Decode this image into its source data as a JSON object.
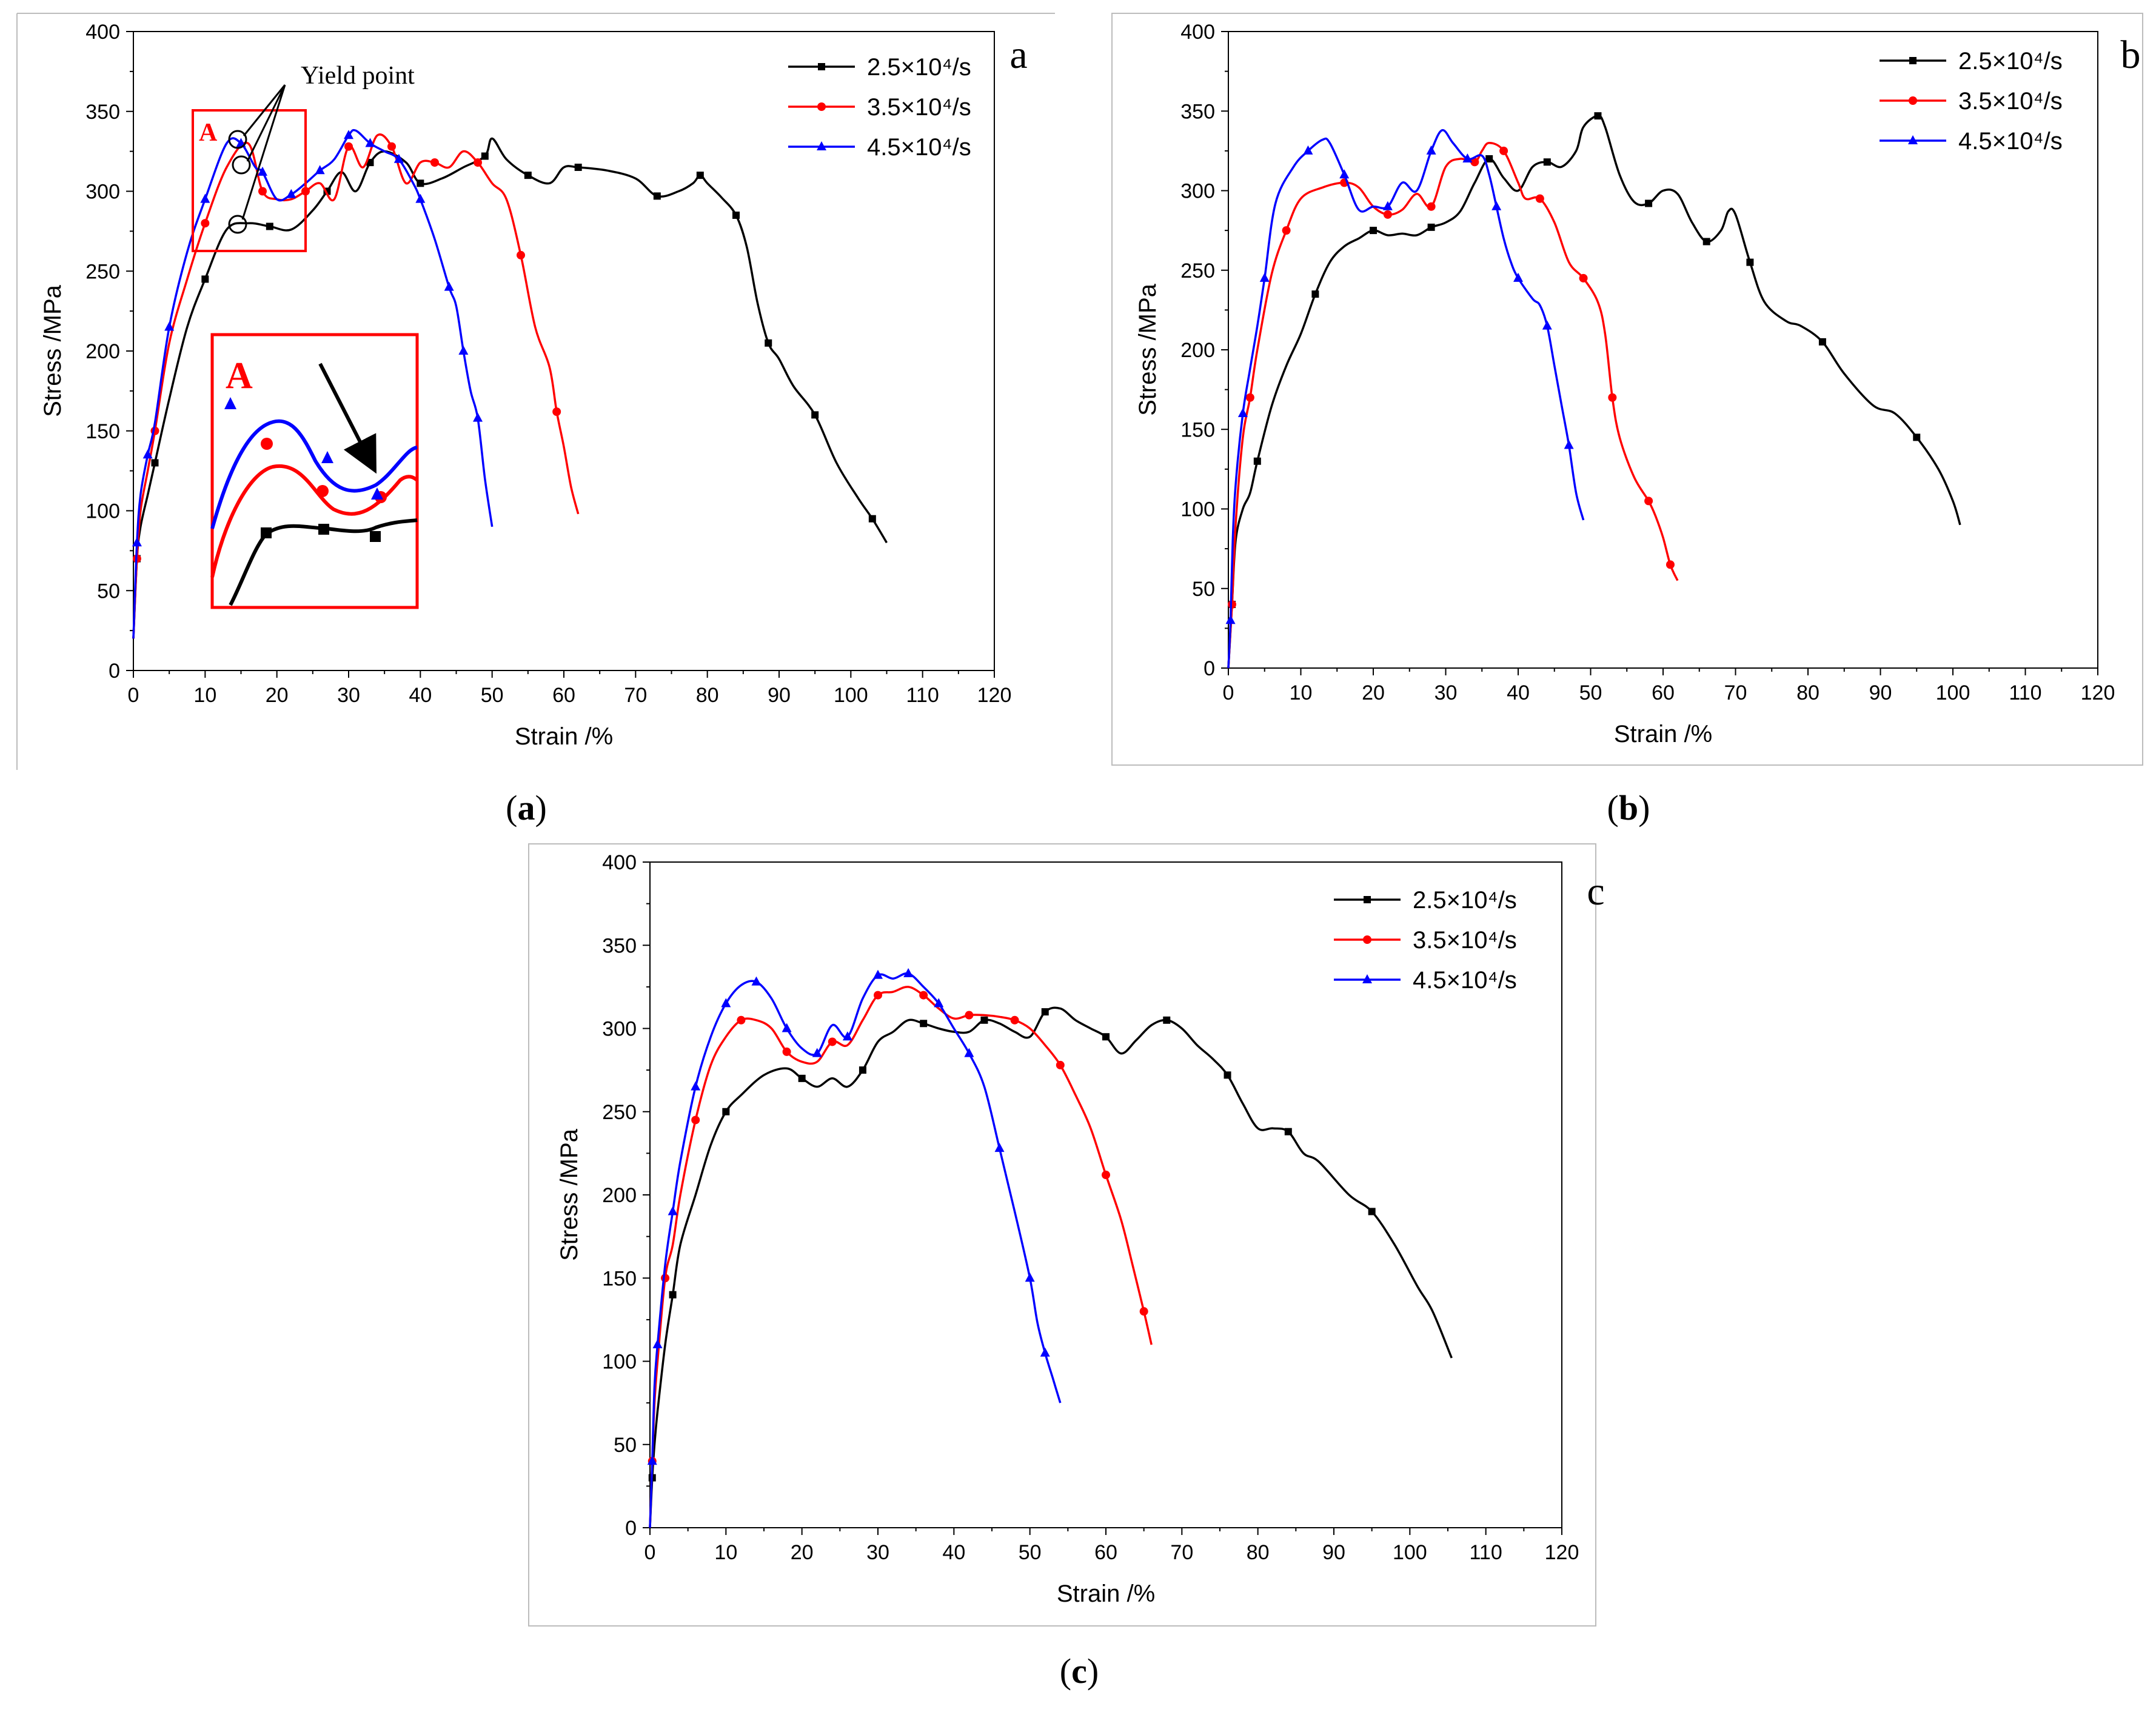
{
  "figure": {
    "captions": [
      "(a)",
      "(b)",
      "(c)"
    ]
  },
  "chart_data": [
    {
      "type": "line",
      "panel_letter": "a",
      "caption": "(a)",
      "xlabel": "Strain /%",
      "ylabel": "Stress /MPa",
      "xlim": [
        0,
        120
      ],
      "ylim": [
        0,
        400
      ],
      "xticks": [
        "0",
        "10",
        "20",
        "30",
        "40",
        "50",
        "60",
        "70",
        "80",
        "90",
        "100",
        "110",
        "120"
      ],
      "yticks": [
        "0",
        "50",
        "100",
        "150",
        "200",
        "250",
        "300",
        "350",
        "400"
      ],
      "legend_position": "top-right",
      "annotation": "Yield point",
      "inset_label": "A",
      "series": [
        {
          "name": "2.5×10⁴/s",
          "color": "#000000",
          "marker": "square",
          "x": [
            0,
            0.5,
            1,
            2,
            3,
            5,
            7.5,
            10,
            13,
            16,
            19,
            22,
            25,
            27,
            29,
            31,
            33,
            35,
            38,
            40,
            43,
            46,
            49,
            50,
            52,
            55,
            58,
            60,
            62,
            66,
            70,
            73,
            76,
            78,
            79,
            80,
            82,
            84,
            85.5,
            87,
            88.5,
            90,
            92,
            95,
            98,
            101,
            103,
            105
          ],
          "y": [
            20,
            70,
            90,
            110,
            130,
            170,
            215,
            245,
            276,
            280,
            278,
            276,
            288,
            300,
            312,
            300,
            318,
            325,
            318,
            305,
            308,
            315,
            322,
            333,
            320,
            310,
            305,
            315,
            315,
            313,
            308,
            297,
            300,
            305,
            310,
            305,
            296,
            285,
            265,
            230,
            205,
            195,
            178,
            160,
            130,
            108,
            95,
            80
          ]
        },
        {
          "name": "3.5×10⁴/s",
          "color": "#ff0000",
          "marker": "circle",
          "x": [
            0,
            0.5,
            1,
            2,
            3,
            5,
            7.5,
            10,
            13,
            16,
            18,
            20,
            22,
            24,
            26,
            28,
            30,
            32,
            34,
            36,
            38,
            40,
            42,
            44,
            46,
            48,
            50,
            52,
            54,
            56,
            58,
            59,
            60,
            61,
            62
          ],
          "y": [
            20,
            70,
            100,
            125,
            150,
            205,
            245,
            280,
            315,
            330,
            300,
            295,
            295,
            300,
            305,
            295,
            328,
            315,
            335,
            328,
            305,
            318,
            318,
            315,
            325,
            318,
            305,
            295,
            260,
            215,
            190,
            162,
            140,
            115,
            98
          ]
        },
        {
          "name": "4.5×10⁴/s",
          "color": "#0000ff",
          "marker": "triangle",
          "x": [
            0,
            0.5,
            1,
            2,
            3,
            5,
            7.5,
            10,
            13,
            15,
            17,
            18,
            20,
            22,
            24,
            26,
            28,
            30,
            31,
            33,
            35,
            37,
            39,
            40,
            42,
            44,
            45,
            46,
            47,
            48,
            49,
            50
          ],
          "y": [
            20,
            80,
            110,
            135,
            155,
            215,
            262,
            295,
            330,
            330,
            315,
            312,
            295,
            298,
            305,
            313,
            320,
            335,
            338,
            330,
            325,
            320,
            305,
            295,
            270,
            240,
            228,
            200,
            175,
            158,
            120,
            90
          ]
        }
      ]
    },
    {
      "type": "line",
      "panel_letter": "b",
      "caption": "(b)",
      "xlabel": "Strain /%",
      "ylabel": "Stress /MPa",
      "xlim": [
        0,
        120
      ],
      "ylim": [
        0,
        400
      ],
      "xticks": [
        "0",
        "10",
        "20",
        "30",
        "40",
        "50",
        "60",
        "70",
        "80",
        "90",
        "100",
        "110",
        "120"
      ],
      "yticks": [
        "0",
        "50",
        "100",
        "150",
        "200",
        "250",
        "300",
        "350",
        "400"
      ],
      "legend_position": "top-right",
      "series": [
        {
          "name": "2.5×10⁴/s",
          "color": "#000000",
          "marker": "square",
          "x": [
            0,
            0.5,
            1,
            2,
            3,
            4,
            6,
            8,
            10,
            12,
            14,
            16,
            18,
            20,
            22,
            24,
            26,
            28,
            30,
            32,
            34,
            36,
            38,
            40,
            42,
            44,
            46,
            48,
            49,
            51,
            52,
            54,
            56,
            58,
            60,
            62,
            64,
            66,
            68,
            69,
            70,
            72,
            74,
            77,
            79,
            82,
            85,
            89,
            92,
            95,
            98,
            100,
            101
          ],
          "y": [
            0,
            40,
            80,
            100,
            110,
            130,
            165,
            190,
            210,
            235,
            255,
            265,
            270,
            275,
            272,
            273,
            272,
            277,
            280,
            287,
            305,
            320,
            308,
            300,
            315,
            318,
            315,
            325,
            340,
            347,
            340,
            310,
            293,
            292,
            300,
            298,
            280,
            268,
            275,
            287,
            285,
            255,
            230,
            218,
            215,
            205,
            185,
            165,
            160,
            145,
            125,
            105,
            90
          ]
        },
        {
          "name": "3.5×10⁴/s",
          "color": "#ff0000",
          "marker": "circle",
          "x": [
            0,
            0.5,
            1,
            2,
            3,
            4,
            6,
            8,
            10,
            13,
            16,
            18,
            20,
            22,
            24,
            26,
            28,
            30,
            32,
            34,
            35,
            36,
            38,
            40,
            41,
            43,
            45,
            47,
            49,
            51,
            52,
            53,
            54,
            56,
            58,
            59,
            60,
            61,
            62
          ],
          "y": [
            0,
            40,
            90,
            145,
            170,
            200,
            248,
            275,
            295,
            302,
            305,
            302,
            290,
            285,
            288,
            298,
            290,
            315,
            320,
            318,
            325,
            330,
            325,
            305,
            295,
            295,
            280,
            255,
            245,
            230,
            210,
            170,
            145,
            120,
            105,
            95,
            82,
            65,
            55
          ]
        },
        {
          "name": "4.5×10⁴/s",
          "color": "#0000ff",
          "marker": "triangle",
          "x": [
            0,
            0.3,
            0.6,
            1,
            2,
            3,
            4,
            5,
            6.5,
            9,
            11,
            13,
            14,
            16,
            18,
            20,
            22,
            24,
            26,
            28,
            29.5,
            31,
            33,
            35,
            36,
            37,
            38,
            39,
            40,
            42,
            43,
            44,
            45,
            46,
            47,
            48,
            49
          ],
          "y": [
            0,
            30,
            80,
            115,
            160,
            188,
            215,
            245,
            292,
            315,
            325,
            332,
            330,
            310,
            288,
            290,
            290,
            305,
            300,
            325,
            338,
            330,
            320,
            322,
            310,
            290,
            270,
            255,
            245,
            232,
            228,
            215,
            190,
            165,
            140,
            110,
            93
          ]
        }
      ]
    },
    {
      "type": "line",
      "panel_letter": "c",
      "caption": "(c)",
      "xlabel": "Strain /%",
      "ylabel": "Stress /MPa",
      "xlim": [
        0,
        120
      ],
      "ylim": [
        0,
        400
      ],
      "xticks": [
        "0",
        "10",
        "20",
        "30",
        "40",
        "50",
        "60",
        "70",
        "80",
        "90",
        "100",
        "110",
        "120"
      ],
      "yticks": [
        "0",
        "50",
        "100",
        "150",
        "200",
        "250",
        "300",
        "350",
        "400"
      ],
      "legend_position": "top-right",
      "series": [
        {
          "name": "2.5×10⁴/s",
          "color": "#000000",
          "marker": "square",
          "x": [
            0,
            0.3,
            0.6,
            1,
            2,
            3,
            4,
            6,
            8,
            10,
            12,
            15,
            18,
            20,
            22,
            24,
            26,
            28,
            30,
            32,
            34,
            36,
            38,
            40,
            42,
            44,
            46,
            48,
            50,
            52,
            54,
            56,
            58,
            60,
            62,
            64,
            66,
            68,
            70,
            72,
            74,
            76,
            78,
            80,
            82,
            84,
            86,
            88,
            92,
            95,
            98,
            101,
            103,
            105.5
          ],
          "y": [
            0,
            30,
            50,
            70,
            110,
            140,
            170,
            200,
            230,
            250,
            260,
            272,
            276,
            270,
            265,
            270,
            265,
            275,
            292,
            298,
            305,
            303,
            300,
            298,
            298,
            305,
            303,
            298,
            295,
            310,
            312,
            305,
            300,
            295,
            285,
            293,
            302,
            305,
            300,
            290,
            282,
            272,
            255,
            240,
            240,
            238,
            225,
            220,
            200,
            190,
            170,
            145,
            130,
            102
          ]
        },
        {
          "name": "3.5×10⁴/s",
          "color": "#ff0000",
          "marker": "circle",
          "x": [
            0,
            0.3,
            0.6,
            1,
            2,
            3,
            4,
            6,
            8,
            10,
            12,
            14,
            16,
            18,
            20,
            22,
            24,
            26,
            28,
            30,
            32,
            34,
            36,
            38,
            40,
            42,
            44,
            46,
            48,
            50,
            52,
            54,
            56,
            58,
            60,
            62,
            63.5,
            65,
            66
          ],
          "y": [
            0,
            40,
            75,
            100,
            150,
            170,
            200,
            245,
            278,
            295,
            305,
            305,
            300,
            286,
            280,
            280,
            292,
            290,
            305,
            320,
            322,
            325,
            320,
            312,
            306,
            308,
            308,
            307,
            305,
            300,
            290,
            278,
            260,
            240,
            212,
            185,
            158,
            130,
            110
          ]
        },
        {
          "name": "4.5×10⁴/s",
          "color": "#0000ff",
          "marker": "triangle",
          "x": [
            0,
            0.3,
            0.6,
            1,
            2,
            3,
            4,
            6,
            8,
            10,
            12,
            14,
            16,
            18,
            20,
            22,
            24,
            26,
            28,
            30,
            32,
            34,
            36,
            38,
            40,
            42,
            44,
            46,
            48,
            50,
            51,
            52,
            53,
            54
          ],
          "y": [
            0,
            40,
            85,
            110,
            158,
            190,
            220,
            265,
            295,
            315,
            326,
            328,
            318,
            300,
            288,
            285,
            302,
            295,
            318,
            332,
            330,
            333,
            325,
            315,
            300,
            285,
            265,
            228,
            190,
            150,
            123,
            105,
            90,
            75
          ]
        }
      ]
    }
  ]
}
